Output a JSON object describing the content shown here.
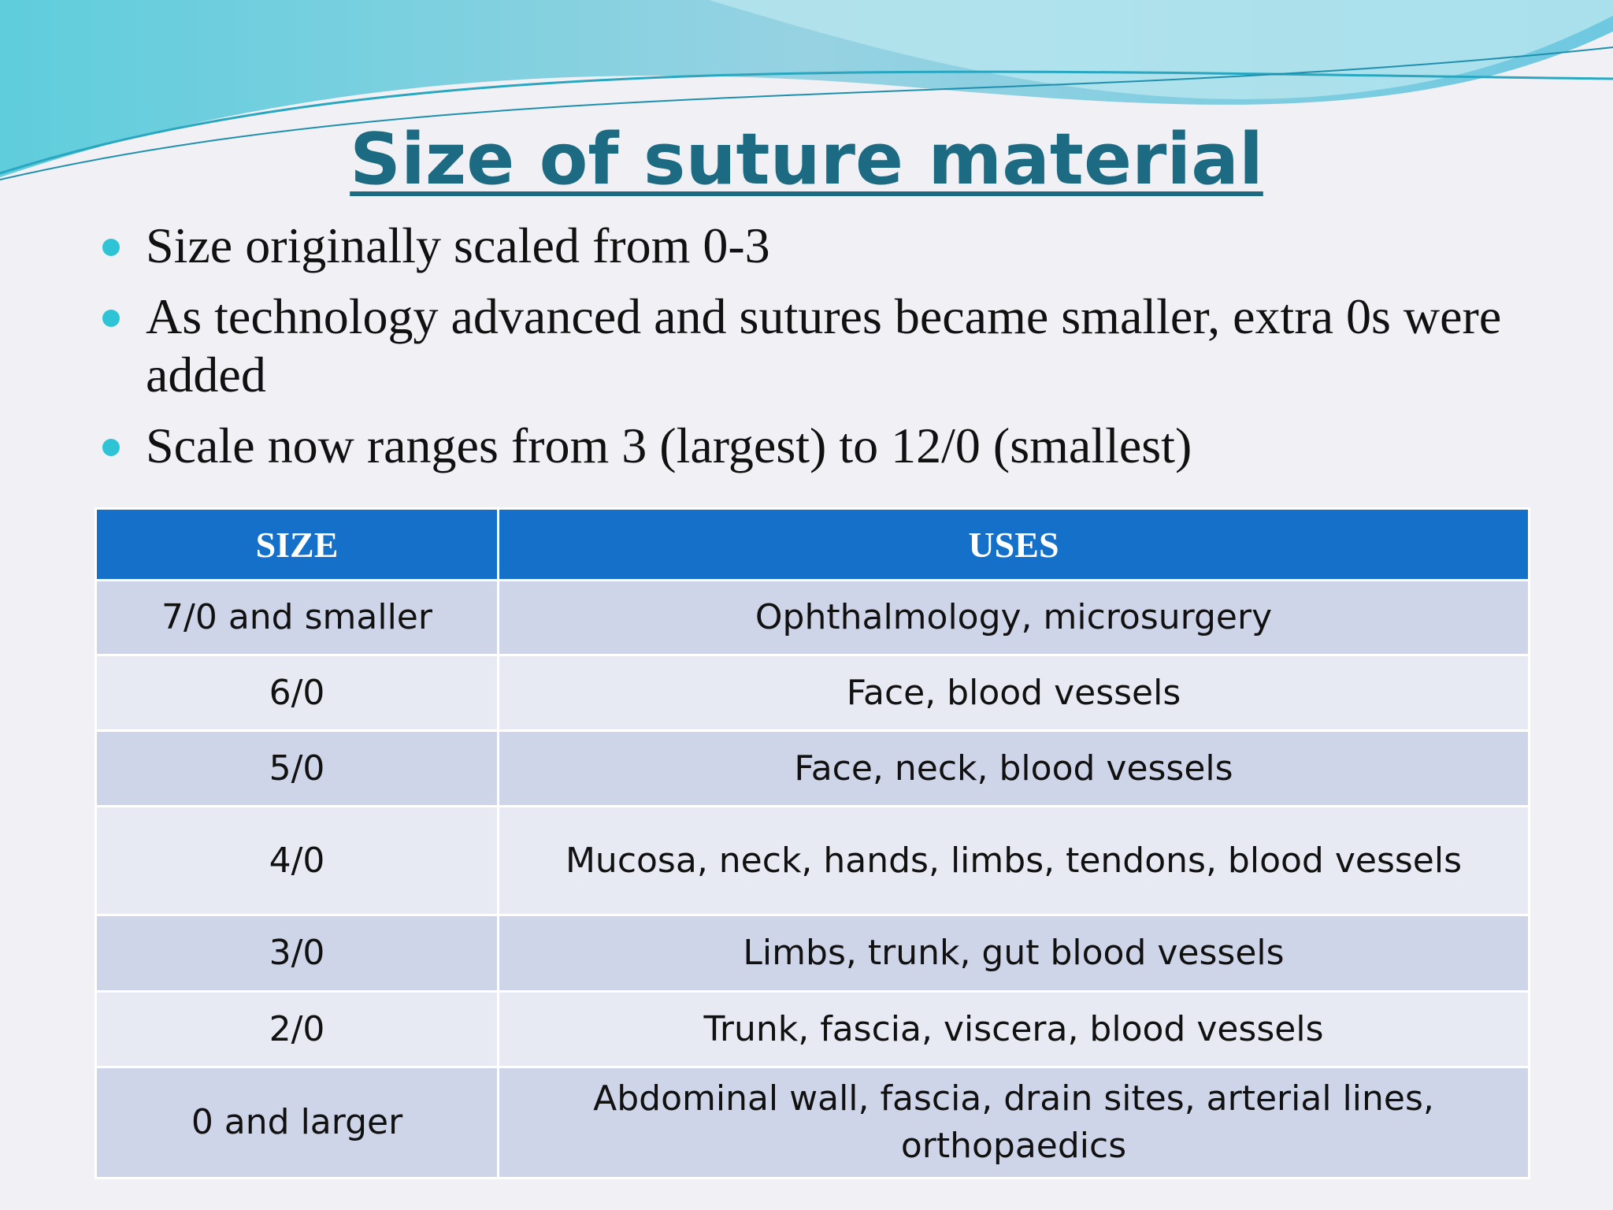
{
  "title": "Size of suture material",
  "bullets": [
    "Size originally scaled from 0-3",
    "As technology advanced and sutures became smaller, extra 0s were added",
    "Scale now ranges from 3 (largest) to 12/0 (smallest)"
  ],
  "table": {
    "header": [
      "SIZE",
      "USES"
    ],
    "rows": [
      [
        "7/0 and smaller",
        "Ophthalmology, microsurgery"
      ],
      [
        "6/0",
        "Face, blood vessels"
      ],
      [
        "5/0",
        "Face, neck, blood vessels"
      ],
      [
        "4/0",
        "Mucosa, neck, hands, limbs, tendons, blood vessels"
      ],
      [
        "3/0",
        "Limbs, trunk, gut blood vessels"
      ],
      [
        "2/0",
        "Trunk, fascia, viscera, blood vessels"
      ],
      [
        "0 and larger",
        "Abdominal wall, fascia, drain sites, arterial lines, orthopaedics"
      ]
    ]
  }
}
